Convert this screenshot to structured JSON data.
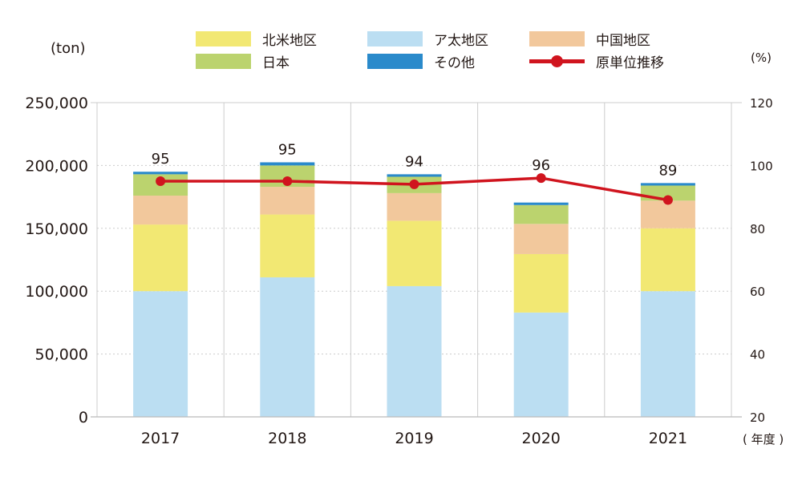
{
  "colors": {
    "north_america": "#F2E873",
    "asia_pacific": "#BBDEF2",
    "china": "#F2C89C",
    "japan": "#BBD36E",
    "other": "#2A8ACB",
    "intensity": "#D0141E",
    "grid": "#CCCCCC",
    "text": "#231815"
  },
  "legend": [
    {
      "key": "north_america",
      "label": "北米地区",
      "type": "box"
    },
    {
      "key": "asia_pacific",
      "label": "ア太地区",
      "type": "box"
    },
    {
      "key": "china",
      "label": "中国地区",
      "type": "box"
    },
    {
      "key": "japan",
      "label": "日本",
      "type": "box"
    },
    {
      "key": "other",
      "label": "その他",
      "type": "box"
    },
    {
      "key": "intensity",
      "label": "原単位推移",
      "type": "line"
    }
  ],
  "chart_data": {
    "type": "bar",
    "stacked": true,
    "categories": [
      "2017",
      "2018",
      "2019",
      "2020",
      "2021"
    ],
    "series": [
      {
        "key": "asia_pacific",
        "name": "ア太地区",
        "values": [
          100000,
          111000,
          104000,
          83000,
          100000
        ]
      },
      {
        "key": "north_america",
        "name": "北米地区",
        "values": [
          53000,
          50000,
          52000,
          46500,
          50000
        ]
      },
      {
        "key": "china",
        "name": "中国地区",
        "values": [
          23000,
          22000,
          22000,
          24000,
          22000
        ]
      },
      {
        "key": "japan",
        "name": "日本",
        "values": [
          17000,
          17000,
          13000,
          15000,
          12000
        ]
      },
      {
        "key": "other",
        "name": "その他",
        "values": [
          2000,
          2500,
          2000,
          2000,
          2000
        ]
      }
    ],
    "line_series": {
      "key": "intensity",
      "name": "原単位推移",
      "values": [
        95,
        95,
        94,
        96,
        89
      ],
      "labels": [
        "95",
        "95",
        "94",
        "96",
        "89"
      ],
      "axis": "right"
    },
    "left_axis": {
      "label": "(ton)",
      "ylim": [
        0,
        250000
      ],
      "ticks": [
        "0",
        "50,000",
        "100,000",
        "150,000",
        "200,000",
        "250,000"
      ],
      "tick_values": [
        0,
        50000,
        100000,
        150000,
        200000,
        250000
      ]
    },
    "right_axis": {
      "label": "(%)",
      "ylim": [
        20,
        120
      ],
      "ticks": [
        "20",
        "40",
        "60",
        "80",
        "100",
        "120"
      ],
      "tick_values": [
        20,
        40,
        60,
        80,
        100,
        120
      ]
    },
    "xlabel": "( 年度 )",
    "grid": true,
    "legend_position": "top"
  }
}
